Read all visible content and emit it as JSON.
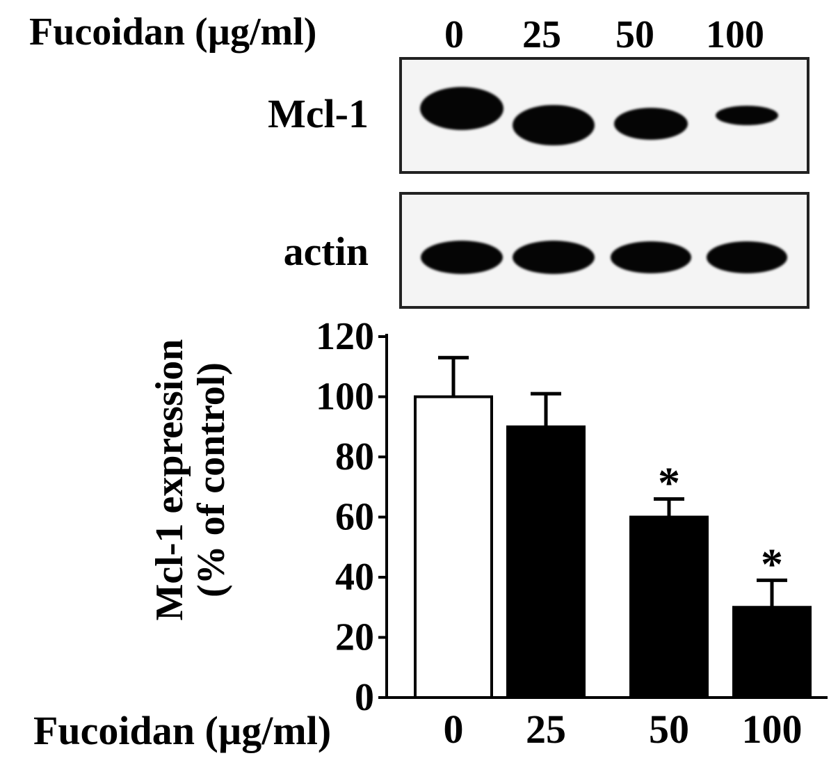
{
  "blot": {
    "dose_label": "Fucoidan (µg/ml)",
    "doses": [
      "0",
      "25",
      "50",
      "100"
    ],
    "rows": [
      {
        "label": "Mcl-1",
        "band_intensity": [
          1.0,
          0.95,
          0.75,
          0.45
        ]
      },
      {
        "label": "actin",
        "band_intensity": [
          1.0,
          1.0,
          0.95,
          0.95
        ]
      }
    ]
  },
  "chart_data": {
    "type": "bar",
    "categories": [
      "0",
      "25",
      "50",
      "100"
    ],
    "values": [
      100,
      90,
      60,
      30
    ],
    "error": [
      13,
      11,
      6,
      9
    ],
    "significance": [
      "",
      "",
      "*",
      "*"
    ],
    "bar_fill": [
      "#ffffff",
      "#000000",
      "#000000",
      "#000000"
    ],
    "xlabel": "Fucoidan (µg/ml)",
    "ylabel_line1": "Mcl-1 expression",
    "ylabel_line2": "(% of control)",
    "ylim": [
      0,
      120
    ],
    "yticks": [
      "0",
      "20",
      "40",
      "60",
      "80",
      "100",
      "120"
    ],
    "grid": false
  }
}
